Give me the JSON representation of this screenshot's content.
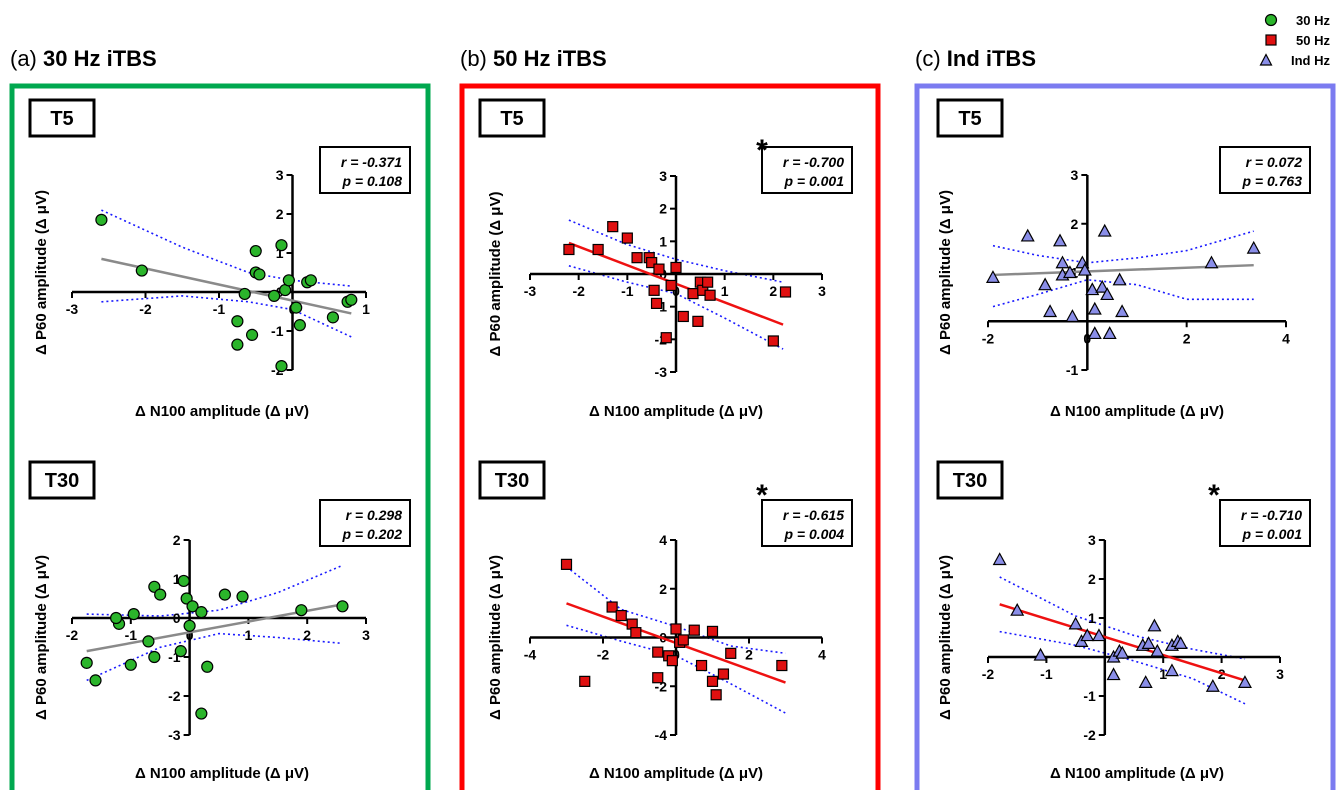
{
  "legend": [
    {
      "label": "30 Hz",
      "marker": "circle",
      "color": "#2bb52b"
    },
    {
      "label": "50 Hz",
      "marker": "square",
      "color": "#e01010"
    },
    {
      "label": "Ind Hz",
      "marker": "triangle",
      "color": "#8a8ee8"
    }
  ],
  "colors": {
    "green_frame": "#00a84f",
    "red_frame": "#ff0000",
    "blue_frame": "#7b7bf0",
    "fit_gray": "#8a8a8a",
    "fit_red": "#ee1111",
    "ci_blue": "#1a1aff"
  },
  "conditions": [
    {
      "prefix": "(a)",
      "name": "30 Hz iTBS"
    },
    {
      "prefix": "(b)",
      "name": "50 Hz iTBS"
    },
    {
      "prefix": "(c)",
      "name": "Ind iTBS"
    }
  ],
  "chart_data": [
    {
      "type": "scatter",
      "panel": "(a) 30 Hz iTBS",
      "timepoint": "T5",
      "xlabel": "Δ N100 amplitude (Δ μV)",
      "ylabel": "Δ P60 amplitude (Δ μV)",
      "xlim": [
        -3,
        1
      ],
      "ylim": [
        -2,
        3
      ],
      "xticks": [
        -3,
        -2,
        -1,
        0,
        1
      ],
      "yticks": [
        -2,
        -1,
        0,
        1,
        2,
        3
      ],
      "stats": {
        "r": "r = -0.371",
        "p": "p = 0.108"
      },
      "significant": false,
      "x": [
        -2.6,
        -2.05,
        -0.65,
        -0.75,
        -0.75,
        -0.55,
        -0.5,
        -0.5,
        -0.45,
        -0.25,
        -0.15,
        -0.15,
        -0.1,
        -0.05,
        0.05,
        0.1,
        0.2,
        0.25,
        0.55,
        0.75,
        0.8
      ],
      "y": [
        1.85,
        0.55,
        -0.05,
        -0.75,
        -1.35,
        -1.1,
        1.05,
        0.5,
        0.45,
        -0.1,
        -1.9,
        1.2,
        0.05,
        0.3,
        -0.4,
        -0.85,
        0.25,
        0.3,
        -0.65,
        -0.25,
        -0.2
      ],
      "fit": {
        "x": [
          -2.6,
          0.8
        ],
        "y": [
          0.85,
          -0.55
        ]
      },
      "ci_upper": [
        [
          -2.6,
          2.1
        ],
        [
          -1.5,
          1.15
        ],
        [
          -0.6,
          0.5
        ],
        [
          0.0,
          0.3
        ],
        [
          0.8,
          0.15
        ]
      ],
      "ci_lower": [
        [
          -2.6,
          -0.25
        ],
        [
          -1.5,
          -0.1
        ],
        [
          -0.6,
          -0.25
        ],
        [
          0.0,
          -0.45
        ],
        [
          0.8,
          -1.15
        ]
      ]
    },
    {
      "type": "scatter",
      "panel": "(a) 30 Hz iTBS",
      "timepoint": "T30",
      "xlabel": "Δ N100 amplitude (Δ μV)",
      "ylabel": "Δ P60 amplitude (Δ μV)",
      "xlim": [
        -2,
        3
      ],
      "ylim": [
        -3,
        2
      ],
      "xticks": [
        -2,
        -1,
        0,
        1,
        2,
        3
      ],
      "yticks": [
        -3,
        -2,
        -1,
        0,
        1,
        2
      ],
      "stats": {
        "r": "r = 0.298",
        "p": "p = 0.202"
      },
      "significant": false,
      "x": [
        -1.75,
        -1.6,
        -1.2,
        -1.25,
        -1.0,
        -0.95,
        -0.7,
        -0.6,
        -0.6,
        -0.5,
        -0.15,
        -0.1,
        -0.05,
        0.0,
        0.05,
        0.2,
        0.2,
        0.3,
        0.6,
        0.9,
        1.9,
        2.6
      ],
      "y": [
        -1.15,
        -1.6,
        -0.15,
        0.0,
        -1.2,
        0.1,
        -0.6,
        0.8,
        -1.0,
        0.6,
        -0.85,
        0.95,
        0.5,
        -0.2,
        0.3,
        0.15,
        -2.45,
        -1.25,
        0.6,
        0.55,
        0.2,
        0.3
      ],
      "fit": {
        "x": [
          -1.75,
          2.6
        ],
        "y": [
          -0.85,
          0.35
        ]
      },
      "ci_upper": [
        [
          -1.75,
          0.1
        ],
        [
          -0.5,
          0.05
        ],
        [
          0.5,
          0.2
        ],
        [
          1.5,
          0.65
        ],
        [
          2.6,
          1.35
        ]
      ],
      "ci_lower": [
        [
          -1.75,
          -1.6
        ],
        [
          -0.5,
          -0.75
        ],
        [
          0.5,
          -0.4
        ],
        [
          1.5,
          -0.5
        ],
        [
          2.6,
          -0.65
        ]
      ]
    },
    {
      "type": "scatter",
      "panel": "(b) 50 Hz iTBS",
      "timepoint": "T5",
      "xlabel": "Δ N100 amplitude (Δ μV)",
      "ylabel": "Δ P60 amplitude (Δ μV)",
      "xlim": [
        -3,
        3
      ],
      "ylim": [
        -3,
        3
      ],
      "xticks": [
        -3,
        -2,
        -1,
        0,
        1,
        2,
        3
      ],
      "yticks": [
        -3,
        -2,
        -1,
        0,
        1,
        2,
        3
      ],
      "stats": {
        "r": "r = -0.700",
        "p": "p = 0.001"
      },
      "significant": true,
      "significance_mark": "*",
      "x": [
        -2.2,
        -1.6,
        -1.3,
        -1.0,
        -0.8,
        -0.55,
        -0.5,
        -0.45,
        -0.4,
        -0.35,
        -0.2,
        -0.1,
        0.0,
        0.15,
        0.35,
        0.45,
        0.5,
        0.55,
        0.65,
        0.7,
        2.0,
        2.25
      ],
      "y": [
        0.75,
        0.75,
        1.45,
        1.1,
        0.5,
        0.5,
        0.35,
        -0.5,
        -0.9,
        0.15,
        -1.95,
        -0.35,
        0.2,
        -1.3,
        -0.6,
        -1.45,
        -0.25,
        -0.5,
        -0.25,
        -0.65,
        -2.05,
        -0.55
      ],
      "fit": {
        "x": [
          -2.2,
          2.2
        ],
        "y": [
          0.95,
          -1.55
        ]
      },
      "ci_upper": [
        [
          -2.2,
          1.65
        ],
        [
          -1.0,
          0.9
        ],
        [
          0.0,
          0.45
        ],
        [
          1.0,
          0.1
        ],
        [
          2.2,
          -0.25
        ]
      ],
      "ci_lower": [
        [
          -2.2,
          0.25
        ],
        [
          -1.0,
          -0.25
        ],
        [
          0.0,
          -0.6
        ],
        [
          1.0,
          -1.35
        ],
        [
          2.2,
          -2.3
        ]
      ]
    },
    {
      "type": "scatter",
      "panel": "(b) 50 Hz iTBS",
      "timepoint": "T30",
      "xlabel": "Δ N100 amplitude (Δ μV)",
      "ylabel": "Δ P60 amplitude (Δ μV)",
      "xlim": [
        -4,
        4
      ],
      "ylim": [
        -4,
        4
      ],
      "xticks": [
        -4,
        -2,
        0,
        2,
        4
      ],
      "yticks": [
        -4,
        -2,
        0,
        2,
        4
      ],
      "stats": {
        "r": "r = -0.615",
        "p": "p = 0.004"
      },
      "significant": true,
      "significance_mark": "*",
      "x": [
        -3.0,
        -2.5,
        -1.75,
        -1.5,
        -1.2,
        -1.1,
        -0.5,
        -0.5,
        -0.2,
        -0.1,
        0.0,
        0.1,
        0.2,
        0.5,
        0.7,
        1.0,
        1.0,
        1.1,
        1.3,
        1.5,
        2.9
      ],
      "y": [
        3.0,
        -1.8,
        1.25,
        0.9,
        0.55,
        0.2,
        -0.6,
        -1.65,
        -0.75,
        -0.95,
        0.35,
        -0.2,
        -0.1,
        0.3,
        -1.15,
        0.25,
        -1.8,
        -2.35,
        -1.5,
        -0.65,
        -1.15
      ],
      "fit": {
        "x": [
          -3.0,
          3.0
        ],
        "y": [
          1.4,
          -1.85
        ]
      },
      "ci_upper": [
        [
          -3.0,
          2.9
        ],
        [
          -1.5,
          1.15
        ],
        [
          0.0,
          0.45
        ],
        [
          1.5,
          -0.35
        ],
        [
          3.0,
          -0.65
        ]
      ],
      "ci_lower": [
        [
          -3.0,
          0.5
        ],
        [
          -1.5,
          -0.15
        ],
        [
          0.0,
          -0.75
        ],
        [
          1.5,
          -1.9
        ],
        [
          3.0,
          -3.1
        ]
      ]
    },
    {
      "type": "scatter",
      "panel": "(c) Ind iTBS",
      "timepoint": "T5",
      "xlabel": "Δ N100 amplitude (Δ μV)",
      "ylabel": "Δ P60 amplitude (Δ μV)",
      "xlim": [
        -2,
        4
      ],
      "ylim": [
        -1,
        3
      ],
      "xticks": [
        -2,
        0,
        2,
        4
      ],
      "yticks": [
        -1,
        1,
        2,
        3
      ],
      "stats": {
        "r": "r = 0.072",
        "p": "p = 0.763"
      },
      "significant": false,
      "x": [
        -1.9,
        -1.2,
        -0.85,
        -0.75,
        -0.55,
        -0.5,
        -0.5,
        -0.35,
        -0.3,
        -0.1,
        -0.05,
        0.1,
        0.15,
        0.15,
        0.3,
        0.35,
        0.4,
        0.45,
        0.65,
        0.7,
        2.5,
        3.35
      ],
      "y": [
        0.9,
        1.75,
        0.75,
        0.2,
        1.65,
        1.2,
        0.95,
        1.0,
        0.1,
        1.2,
        1.05,
        0.65,
        0.25,
        -0.25,
        0.7,
        1.85,
        0.55,
        -0.25,
        0.85,
        0.2,
        1.2,
        1.5
      ],
      "fit": {
        "x": [
          -1.9,
          3.35
        ],
        "y": [
          0.95,
          1.15
        ]
      },
      "ci_upper": [
        [
          -1.9,
          1.55
        ],
        [
          -1.0,
          1.35
        ],
        [
          0.0,
          1.2
        ],
        [
          1.0,
          1.3
        ],
        [
          2.0,
          1.45
        ],
        [
          3.35,
          1.85
        ]
      ],
      "ci_lower": [
        [
          -1.9,
          0.3
        ],
        [
          -1.0,
          0.55
        ],
        [
          0.0,
          0.85
        ],
        [
          1.0,
          0.75
        ],
        [
          2.0,
          0.45
        ],
        [
          3.35,
          0.45
        ]
      ]
    },
    {
      "type": "scatter",
      "panel": "(c) Ind iTBS",
      "timepoint": "T30",
      "xlabel": "Δ N100 amplitude (Δ μV)",
      "ylabel": "Δ P60 amplitude (Δ μV)",
      "xlim": [
        -2,
        3
      ],
      "ylim": [
        -2,
        3
      ],
      "xticks": [
        -2,
        -1,
        1,
        2,
        3
      ],
      "yticks": [
        -2,
        -1,
        1,
        2,
        3
      ],
      "stats": {
        "r": "r = -0.710",
        "p": "p = 0.001"
      },
      "significant": true,
      "significance_mark": "*",
      "x": [
        -1.8,
        -1.5,
        -1.1,
        -0.5,
        -0.4,
        -0.3,
        -0.1,
        0.15,
        0.15,
        0.25,
        0.3,
        0.65,
        0.7,
        0.75,
        0.85,
        0.9,
        1.15,
        1.15,
        1.25,
        1.3,
        1.85,
        2.4
      ],
      "y": [
        2.5,
        1.2,
        0.05,
        0.85,
        0.4,
        0.55,
        0.55,
        0.0,
        -0.45,
        0.15,
        0.1,
        0.3,
        -0.65,
        0.35,
        0.8,
        0.15,
        -0.35,
        0.3,
        0.4,
        0.35,
        -0.75,
        -0.65
      ],
      "fit": {
        "x": [
          -1.8,
          2.4
        ],
        "y": [
          1.35,
          -0.6
        ]
      },
      "ci_upper": [
        [
          -1.8,
          2.05
        ],
        [
          -0.5,
          1.05
        ],
        [
          0.5,
          0.55
        ],
        [
          1.5,
          0.2
        ],
        [
          2.4,
          -0.05
        ]
      ],
      "ci_lower": [
        [
          -1.8,
          0.65
        ],
        [
          -0.5,
          0.3
        ],
        [
          0.5,
          -0.1
        ],
        [
          1.5,
          -0.55
        ],
        [
          2.4,
          -1.2
        ]
      ]
    }
  ]
}
